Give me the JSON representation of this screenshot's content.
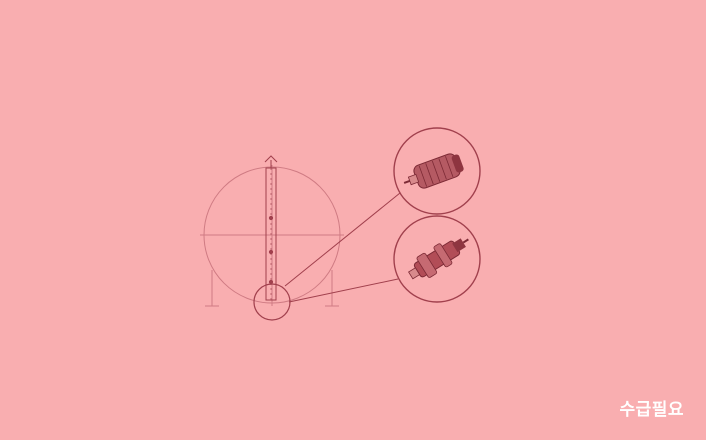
{
  "colors": {
    "background": "#f9aeb0",
    "line": "#c96b74",
    "line_dark": "#a1404d",
    "part": "#9c3a45",
    "part_light": "#d88a8c",
    "label": "#ffffff"
  },
  "icons": {
    "diagram": "tank-pump-diagram-icon",
    "top_part": "cylindrical-motor-icon",
    "bottom_part": "pump-assembly-icon"
  },
  "badge": {
    "label": "수급필요"
  }
}
